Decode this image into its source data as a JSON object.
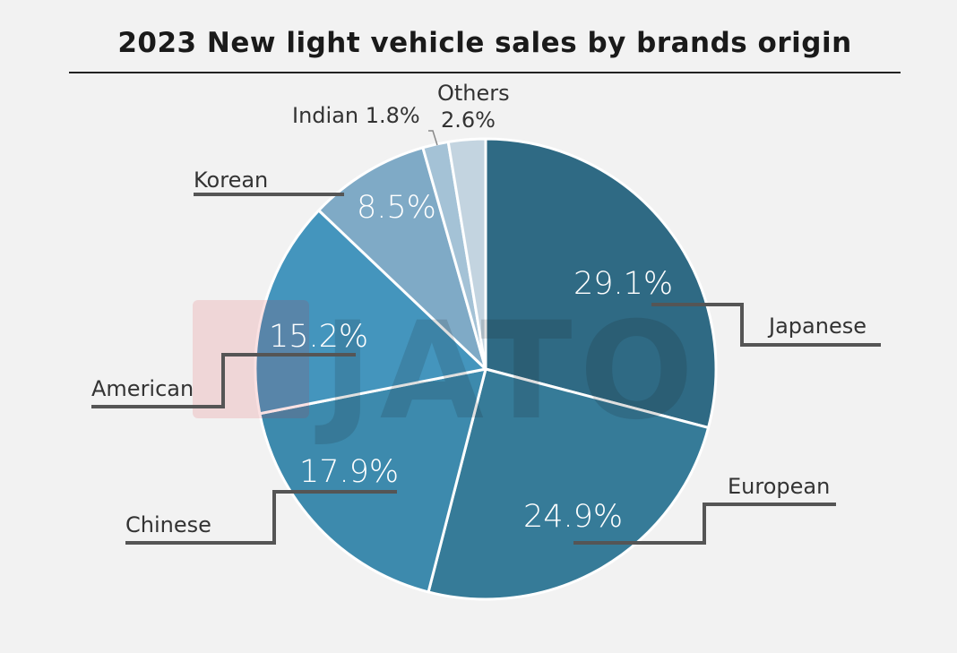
{
  "chart_data": {
    "type": "pie",
    "title": "2023 New light vehicle sales by brands origin",
    "start": "top, clockwise",
    "slices": [
      {
        "label": "Japanese",
        "value": 29.1,
        "display": "29.1%",
        "color": "#2f6a84"
      },
      {
        "label": "European",
        "value": 24.9,
        "display": "24.9%",
        "color": "#367b98"
      },
      {
        "label": "Chinese",
        "value": 17.9,
        "display": "17.9%",
        "color": "#3d8aad"
      },
      {
        "label": "American",
        "value": 15.2,
        "display": "15.2%",
        "color": "#4495bd"
      },
      {
        "label": "Korean",
        "value": 8.5,
        "display": "8.5%",
        "color": "#7faac6"
      },
      {
        "label": "Indian",
        "value": 1.8,
        "display": "1.8%",
        "color": "#a4c2d6"
      },
      {
        "label": "Others",
        "value": 2.6,
        "display": "2.6%",
        "color": "#c3d4e0"
      }
    ]
  },
  "watermark": "JATO"
}
